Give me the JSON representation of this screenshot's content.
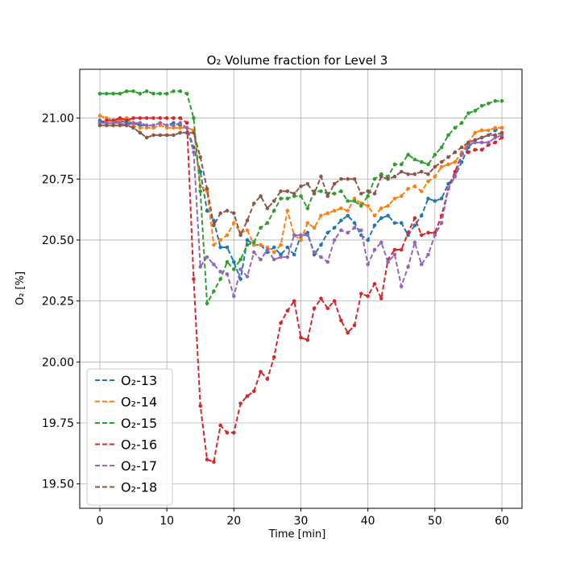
{
  "chart_data": {
    "type": "line",
    "title": "O₂ Volume fraction for Level 3",
    "xlabel": "Time [min]",
    "ylabel": "O₂ [%]",
    "xlim": [
      -3,
      63
    ],
    "ylim": [
      19.4,
      21.2
    ],
    "xticks": [
      0,
      10,
      20,
      30,
      40,
      50,
      60
    ],
    "yticks": [
      19.5,
      19.75,
      20.0,
      20.25,
      20.5,
      20.75,
      21.0
    ],
    "xtick_labels": [
      "0",
      "10",
      "20",
      "30",
      "40",
      "50",
      "60"
    ],
    "ytick_labels": [
      "19.50",
      "19.75",
      "20.00",
      "20.25",
      "20.50",
      "20.75",
      "21.00"
    ],
    "grid": true,
    "legend_position": "lower-left",
    "x": [
      0,
      1,
      2,
      3,
      4,
      5,
      6,
      7,
      8,
      9,
      10,
      11,
      12,
      13,
      14,
      15,
      16,
      17,
      18,
      19,
      20,
      21,
      22,
      23,
      24,
      25,
      26,
      27,
      28,
      29,
      30,
      31,
      32,
      33,
      34,
      35,
      36,
      37,
      38,
      39,
      40,
      41,
      42,
      43,
      44,
      45,
      46,
      47,
      48,
      49,
      50,
      51,
      52,
      53,
      54,
      55,
      56,
      57,
      58,
      59,
      60
    ],
    "series": [
      {
        "name": "O₂-13",
        "color": "#1f77b4",
        "values": [
          20.99,
          20.98,
          20.98,
          20.99,
          20.98,
          20.98,
          20.97,
          20.97,
          20.97,
          20.98,
          20.97,
          20.98,
          20.97,
          20.96,
          20.88,
          20.78,
          20.62,
          20.58,
          20.47,
          20.47,
          20.41,
          20.34,
          20.5,
          20.48,
          20.48,
          20.45,
          20.47,
          20.44,
          20.47,
          20.44,
          20.52,
          20.53,
          20.44,
          20.48,
          20.53,
          20.55,
          20.58,
          20.6,
          20.57,
          20.52,
          20.5,
          20.56,
          20.59,
          20.6,
          20.57,
          20.57,
          20.52,
          20.56,
          20.6,
          20.67,
          20.66,
          20.67,
          20.73,
          20.76,
          20.82,
          20.88,
          20.91,
          20.92,
          20.93,
          20.95,
          20.96
        ]
      },
      {
        "name": "O₂-14",
        "color": "#ff7f0e",
        "values": [
          21.01,
          21.0,
          20.99,
          20.99,
          21.0,
          20.97,
          20.96,
          20.96,
          20.96,
          20.97,
          20.96,
          20.96,
          20.96,
          20.96,
          20.95,
          20.72,
          20.7,
          20.48,
          20.5,
          20.52,
          20.57,
          20.53,
          20.54,
          20.48,
          20.48,
          20.47,
          20.45,
          20.48,
          20.62,
          20.52,
          20.5,
          20.57,
          20.55,
          20.6,
          20.61,
          20.62,
          20.63,
          20.62,
          20.67,
          20.65,
          20.64,
          20.6,
          20.63,
          20.64,
          20.67,
          20.68,
          20.71,
          20.72,
          20.7,
          20.74,
          20.76,
          20.8,
          20.81,
          20.82,
          20.86,
          20.9,
          20.94,
          20.95,
          20.95,
          20.96,
          20.96
        ]
      },
      {
        "name": "O₂-15",
        "color": "#2ca02c",
        "values": [
          21.1,
          21.1,
          21.1,
          21.1,
          21.11,
          21.11,
          21.1,
          21.11,
          21.1,
          21.1,
          21.1,
          21.11,
          21.11,
          21.1,
          21.0,
          20.7,
          20.24,
          20.29,
          20.34,
          20.41,
          20.38,
          20.42,
          20.48,
          20.49,
          20.55,
          20.57,
          20.62,
          20.67,
          20.67,
          20.68,
          20.68,
          20.63,
          20.7,
          20.7,
          20.69,
          20.69,
          20.7,
          20.66,
          20.66,
          20.64,
          20.68,
          20.75,
          20.77,
          20.76,
          20.81,
          20.81,
          20.85,
          20.83,
          20.82,
          20.81,
          20.85,
          20.88,
          20.93,
          20.96,
          20.98,
          21.02,
          21.03,
          21.05,
          21.06,
          21.07,
          21.07
        ]
      },
      {
        "name": "O₂-16",
        "color": "#d62728",
        "values": [
          20.98,
          20.99,
          20.99,
          21.0,
          20.99,
          21.0,
          21.0,
          21.0,
          21.0,
          21.0,
          21.0,
          21.0,
          21.0,
          20.98,
          20.34,
          19.82,
          19.6,
          19.59,
          19.74,
          19.71,
          19.71,
          19.83,
          19.86,
          19.88,
          19.96,
          19.93,
          20.02,
          20.16,
          20.21,
          20.25,
          20.1,
          20.09,
          20.22,
          20.26,
          20.22,
          20.25,
          20.17,
          20.12,
          20.15,
          20.28,
          20.27,
          20.32,
          20.26,
          20.42,
          20.46,
          20.46,
          20.53,
          20.59,
          20.52,
          20.53,
          20.53,
          20.6,
          20.71,
          20.78,
          20.85,
          20.86,
          20.87,
          20.87,
          20.89,
          20.9,
          20.92
        ]
      },
      {
        "name": "O₂-17",
        "color": "#9467bd",
        "values": [
          20.98,
          20.98,
          20.98,
          20.98,
          20.97,
          20.98,
          20.98,
          20.97,
          20.97,
          20.98,
          20.97,
          20.97,
          20.98,
          20.96,
          20.86,
          20.39,
          20.43,
          20.4,
          20.37,
          20.36,
          20.27,
          20.38,
          20.35,
          20.45,
          20.42,
          20.46,
          20.42,
          20.43,
          20.43,
          20.52,
          20.52,
          20.52,
          20.45,
          20.43,
          20.41,
          20.5,
          20.54,
          20.53,
          20.55,
          20.54,
          20.4,
          20.46,
          20.49,
          20.41,
          20.44,
          20.31,
          20.39,
          20.49,
          20.4,
          20.44,
          20.52,
          20.57,
          20.71,
          20.76,
          20.85,
          20.89,
          20.9,
          20.9,
          20.9,
          20.92,
          20.93
        ]
      },
      {
        "name": "O₂-18",
        "color": "#8c564b",
        "values": [
          20.97,
          20.97,
          20.97,
          20.97,
          20.97,
          20.96,
          20.94,
          20.92,
          20.93,
          20.93,
          20.93,
          20.93,
          20.94,
          20.94,
          20.94,
          20.84,
          20.71,
          20.56,
          20.61,
          20.62,
          20.61,
          20.52,
          20.58,
          20.65,
          20.68,
          20.63,
          20.66,
          20.7,
          20.7,
          20.69,
          20.72,
          20.73,
          20.69,
          20.76,
          20.68,
          20.73,
          20.75,
          20.75,
          20.75,
          20.69,
          20.7,
          20.69,
          20.76,
          20.75,
          20.76,
          20.78,
          20.77,
          20.77,
          20.78,
          20.77,
          20.8,
          20.82,
          20.84,
          20.86,
          20.88,
          20.9,
          20.91,
          20.92,
          20.93,
          20.93,
          20.94
        ]
      }
    ]
  }
}
